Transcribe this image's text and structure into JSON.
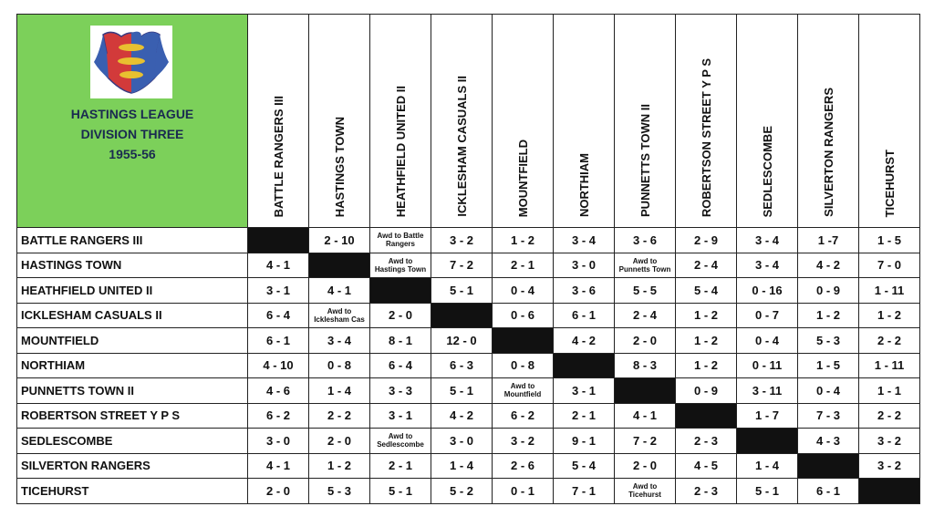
{
  "header": {
    "title_lines": [
      "HASTINGS LEAGUE",
      "DIVISION THREE",
      "1955-56"
    ]
  },
  "table": {
    "columns": [
      "BATTLE RANGERS III",
      "HASTINGS TOWN",
      "HEATHFIELD UNITED II",
      "ICKLESHAM CASUALS II",
      "MOUNTFIELD",
      "NORTHIAM",
      "PUNNETTS TOWN II",
      "ROBERTSON STREET Y P S",
      "SEDLESCOMBE",
      "SILVERTON RANGERS",
      "TICEHURST"
    ],
    "rows": [
      {
        "team": "BATTLE RANGERS III",
        "results": [
          null,
          "2 - 10",
          "Awd to Battle Rangers",
          "3 - 2",
          "1 - 2",
          "3 - 4",
          "3 - 6",
          "2 - 9",
          "3 - 4",
          "1 -7",
          "1 - 5"
        ]
      },
      {
        "team": "HASTINGS TOWN",
        "results": [
          "4 - 1",
          null,
          "Awd to Hastings Town",
          "7 - 2",
          "2 - 1",
          "3 - 0",
          "Awd to Punnetts Town",
          "2 - 4",
          "3 - 4",
          "4 - 2",
          "7 - 0"
        ]
      },
      {
        "team": "HEATHFIELD UNITED II",
        "results": [
          "3 - 1",
          "4 - 1",
          null,
          "5 - 1",
          "0 - 4",
          "3 - 6",
          "5 - 5",
          "5 - 4",
          "0 - 16",
          "0 - 9",
          "1 - 11"
        ]
      },
      {
        "team": "ICKLESHAM CASUALS II",
        "results": [
          "6 - 4",
          "Awd to Icklesham Cas",
          "2 - 0",
          null,
          "0 - 6",
          "6 - 1",
          "2 - 4",
          "1 - 2",
          "0 - 7",
          "1 - 2",
          "1 - 2"
        ]
      },
      {
        "team": "MOUNTFIELD",
        "results": [
          "6 - 1",
          "3 - 4",
          "8 - 1",
          "12 - 0",
          null,
          "4 - 2",
          "2 - 0",
          "1 - 2",
          "0 - 4",
          "5 - 3",
          "2 - 2"
        ]
      },
      {
        "team": "NORTHIAM",
        "results": [
          "4 - 10",
          "0 - 8",
          "6 - 4",
          "6 - 3",
          "0 - 8",
          null,
          "8 - 3",
          "1 - 2",
          "0 - 11",
          "1 - 5",
          "1 - 11"
        ]
      },
      {
        "team": "PUNNETTS TOWN II",
        "results": [
          "4 - 6",
          "1 - 4",
          "3 - 3",
          "5 - 1",
          "Awd to Mountfield",
          "3 - 1",
          null,
          "0 - 9",
          "3 - 11",
          "0 - 4",
          "1 - 1"
        ]
      },
      {
        "team": "ROBERTSON STREET Y P S",
        "results": [
          "6 - 2",
          "2 - 2",
          "3 - 1",
          "4 - 2",
          "6 - 2",
          "2 - 1",
          "4 - 1",
          null,
          "1 - 7",
          "7 - 3",
          "2 - 2"
        ]
      },
      {
        "team": "SEDLESCOMBE",
        "results": [
          "3 - 0",
          "2 - 0",
          "Awd to Sedlescombe",
          "3 - 0",
          "3 - 2",
          "9 - 1",
          "7 - 2",
          "2 - 3",
          null,
          "4 - 3",
          "3 - 2"
        ]
      },
      {
        "team": "SILVERTON RANGERS",
        "results": [
          "4 - 1",
          "1 - 2",
          "2 - 1",
          "1 - 4",
          "2 - 6",
          "5 - 4",
          "2 - 0",
          "4 - 5",
          "1 - 4",
          null,
          "3 - 2"
        ]
      },
      {
        "team": "TICEHURST",
        "results": [
          "2 - 0",
          "5 - 3",
          "5 - 1",
          "5 - 2",
          "0 - 1",
          "7 - 1",
          "Awd to Ticehurst",
          "2 - 3",
          "5 - 1",
          "6 - 1",
          null
        ]
      }
    ]
  }
}
